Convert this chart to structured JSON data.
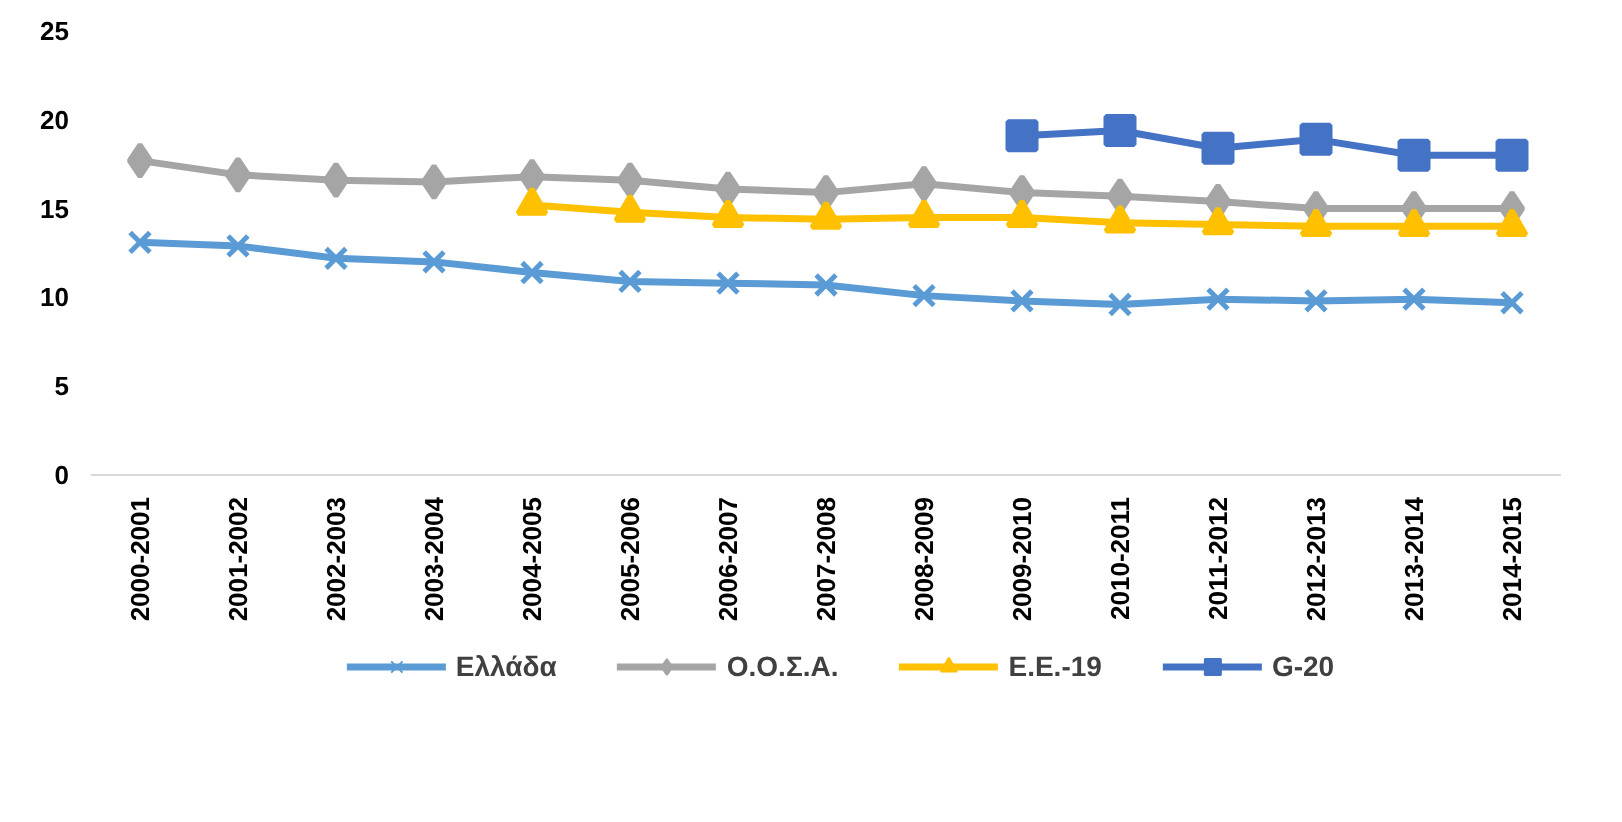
{
  "chart_data": {
    "type": "line",
    "categories": [
      "2000-2001",
      "2001-2002",
      "2002-2003",
      "2003-2004",
      "2004-2005",
      "2005-2006",
      "2006-2007",
      "2007-2008",
      "2008-2009",
      "2009-2010",
      "2010-2011",
      "2011-2012",
      "2012-2013",
      "2013-2014",
      "2014-2015"
    ],
    "series": [
      {
        "name": "Ελλάδα",
        "color": "#5b9bd5",
        "marker": "cross",
        "values": [
          13.1,
          12.9,
          12.2,
          12.0,
          11.4,
          10.9,
          10.8,
          10.7,
          10.1,
          9.8,
          9.6,
          9.9,
          9.8,
          9.9,
          9.7
        ]
      },
      {
        "name": "Ο.Ο.Σ.Α.",
        "color": "#a5a5a5",
        "marker": "diamond",
        "values": [
          17.7,
          16.9,
          16.6,
          16.5,
          16.8,
          16.6,
          16.1,
          15.9,
          16.4,
          15.9,
          15.7,
          15.4,
          15.0,
          15.0,
          15.0
        ]
      },
      {
        "name": "Ε.Ε.-19",
        "color": "#ffc000",
        "marker": "triangle",
        "values": [
          null,
          null,
          null,
          null,
          15.2,
          14.8,
          14.5,
          14.4,
          14.5,
          14.5,
          14.2,
          14.1,
          14.0,
          14.0,
          14.0
        ]
      },
      {
        "name": "G-20",
        "color": "#4472c4",
        "marker": "square",
        "values": [
          null,
          null,
          null,
          null,
          null,
          null,
          null,
          null,
          null,
          19.1,
          19.4,
          18.4,
          18.9,
          18.0,
          18.0
        ]
      }
    ],
    "ylim": [
      0,
      25
    ],
    "yticks": [
      0,
      5,
      10,
      15,
      20,
      25
    ],
    "grid": false,
    "legend": "bottom",
    "line_style": "solid"
  }
}
